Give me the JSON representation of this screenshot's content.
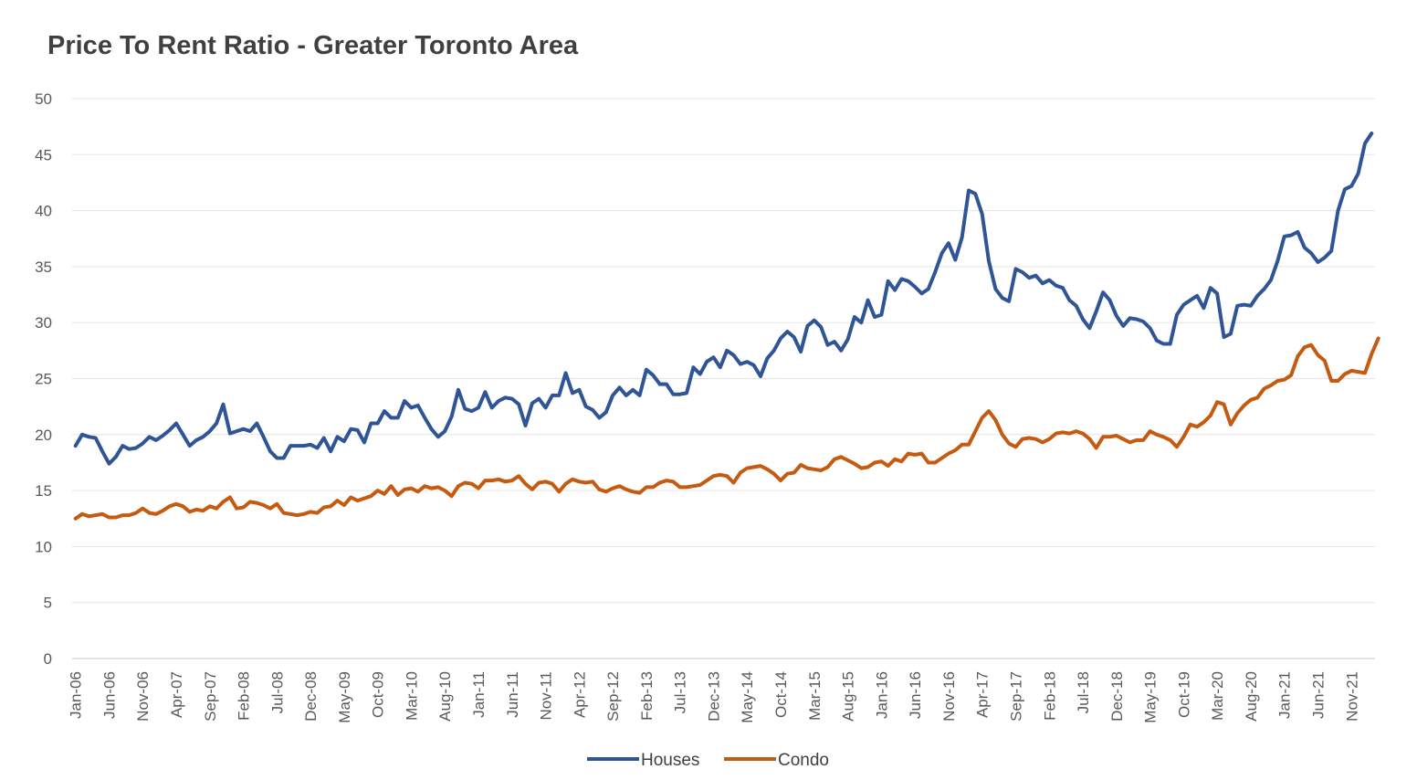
{
  "colors": {
    "houses": "#2f5597",
    "condo": "#c55a11"
  },
  "chart_data": {
    "type": "line",
    "title": "Price To Rent Ratio - Greater Toronto Area",
    "xlabel": "",
    "ylabel": "",
    "ylim": [
      0,
      50
    ],
    "yticks": [
      0,
      5,
      10,
      15,
      20,
      25,
      30,
      35,
      40,
      45,
      50
    ],
    "grid": true,
    "legend": "bottom",
    "x_start": "Jan-06",
    "x_end": "Mar-22",
    "x_tick_labels": [
      "Jan-06",
      "Jun-06",
      "Nov-06",
      "Apr-07",
      "Sep-07",
      "Feb-08",
      "Jul-08",
      "Dec-08",
      "May-09",
      "Oct-09",
      "Mar-10",
      "Aug-10",
      "Jan-11",
      "Jun-11",
      "Nov-11",
      "Apr-12",
      "Sep-12",
      "Feb-13",
      "Jul-13",
      "Dec-13",
      "May-14",
      "Oct-14",
      "Mar-15",
      "Aug-15",
      "Jan-16",
      "Jun-16",
      "Nov-16",
      "Apr-17",
      "Sep-17",
      "Feb-18",
      "Jul-18",
      "Dec-18",
      "May-19",
      "Oct-19",
      "Mar-20",
      "Aug-20",
      "Jan-21",
      "Jun-21",
      "Nov-21"
    ],
    "series": [
      {
        "name": "Houses",
        "color": "#2f5597",
        "values": [
          19.0,
          20.0,
          19.8,
          19.7,
          18.5,
          17.4,
          18.0,
          19.0,
          18.7,
          18.8,
          19.2,
          19.8,
          19.5,
          19.9,
          20.4,
          21.0,
          20.0,
          19.0,
          19.5,
          19.8,
          20.3,
          21.0,
          22.7,
          20.1,
          20.3,
          20.5,
          20.3,
          21.0,
          19.8,
          18.5,
          17.9,
          17.9,
          19.0,
          19.0,
          19.0,
          19.1,
          18.8,
          19.7,
          18.5,
          19.8,
          19.4,
          20.5,
          20.4,
          19.3,
          21.0,
          21.0,
          22.1,
          21.5,
          21.5,
          23.0,
          22.4,
          22.6,
          21.5,
          20.5,
          19.8,
          20.3,
          21.6,
          24.0,
          22.3,
          22.1,
          22.4,
          23.8,
          22.4,
          23.0,
          23.3,
          23.2,
          22.7,
          20.8,
          22.8,
          23.2,
          22.4,
          23.5,
          23.5,
          25.5,
          23.7,
          24.0,
          22.5,
          22.2,
          21.5,
          22.0,
          23.5,
          24.2,
          23.5,
          24.0,
          23.5,
          25.8,
          25.3,
          24.5,
          24.5,
          23.6,
          23.6,
          23.7,
          26.0,
          25.4,
          26.5,
          26.9,
          26.0,
          27.5,
          27.1,
          26.3,
          26.5,
          26.2,
          25.2,
          26.8,
          27.5,
          28.6,
          29.2,
          28.7,
          27.4,
          29.7,
          30.2,
          29.6,
          28.0,
          28.3,
          27.5,
          28.5,
          30.5,
          30.0,
          32.0,
          30.5,
          30.7,
          33.7,
          32.9,
          33.9,
          33.7,
          33.2,
          32.6,
          33.0,
          34.5,
          36.2,
          37.1,
          35.6,
          37.6,
          41.8,
          41.5,
          39.7,
          35.5,
          33.0,
          32.2,
          31.9,
          34.8,
          34.5,
          34.0,
          34.2,
          33.5,
          33.8,
          33.3,
          33.1,
          32.0,
          31.5,
          30.3,
          29.5,
          31.0,
          32.7,
          32.0,
          30.6,
          29.7,
          30.4,
          30.3,
          30.1,
          29.5,
          28.4,
          28.1,
          28.1,
          30.7,
          31.6,
          32.0,
          32.4,
          31.3,
          33.1,
          32.6,
          28.7,
          29.0,
          31.5,
          31.6,
          31.5,
          32.4,
          33.0,
          33.8,
          35.5,
          37.7,
          37.8,
          38.1,
          36.7,
          36.2,
          35.4,
          35.8,
          36.4,
          40.0,
          41.9,
          42.2,
          43.3,
          46.0,
          46.9
        ]
      },
      {
        "name": "Condo",
        "color": "#c55a11",
        "values": [
          12.5,
          12.9,
          12.7,
          12.8,
          12.9,
          12.6,
          12.6,
          12.8,
          12.8,
          13.0,
          13.4,
          13.0,
          12.9,
          13.2,
          13.6,
          13.8,
          13.6,
          13.1,
          13.3,
          13.2,
          13.6,
          13.4,
          14.0,
          14.4,
          13.4,
          13.5,
          14.0,
          13.9,
          13.7,
          13.4,
          13.8,
          13.0,
          12.9,
          12.8,
          12.9,
          13.1,
          13.0,
          13.5,
          13.6,
          14.1,
          13.7,
          14.4,
          14.1,
          14.3,
          14.5,
          15.0,
          14.7,
          15.4,
          14.6,
          15.1,
          15.2,
          14.9,
          15.4,
          15.2,
          15.3,
          15.0,
          14.5,
          15.4,
          15.7,
          15.6,
          15.2,
          15.9,
          15.9,
          16.0,
          15.8,
          15.9,
          16.3,
          15.6,
          15.1,
          15.7,
          15.8,
          15.6,
          14.9,
          15.6,
          16.0,
          15.8,
          15.7,
          15.8,
          15.1,
          14.9,
          15.2,
          15.4,
          15.1,
          14.9,
          14.8,
          15.3,
          15.3,
          15.7,
          15.9,
          15.8,
          15.3,
          15.3,
          15.4,
          15.5,
          15.9,
          16.3,
          16.4,
          16.3,
          15.7,
          16.6,
          17.0,
          17.1,
          17.2,
          16.9,
          16.5,
          15.9,
          16.5,
          16.6,
          17.3,
          17.0,
          16.9,
          16.8,
          17.1,
          17.8,
          18.0,
          17.7,
          17.4,
          17.0,
          17.1,
          17.5,
          17.6,
          17.2,
          17.8,
          17.6,
          18.3,
          18.2,
          18.3,
          17.5,
          17.5,
          17.9,
          18.3,
          18.6,
          19.1,
          19.1,
          20.3,
          21.5,
          22.1,
          21.3,
          20.0,
          19.2,
          18.9,
          19.6,
          19.7,
          19.6,
          19.3,
          19.6,
          20.1,
          20.2,
          20.1,
          20.3,
          20.1,
          19.6,
          18.8,
          19.8,
          19.8,
          19.9,
          19.6,
          19.3,
          19.5,
          19.5,
          20.3,
          20.0,
          19.8,
          19.5,
          18.9,
          19.8,
          20.9,
          20.7,
          21.1,
          21.7,
          22.9,
          22.7,
          20.9,
          21.9,
          22.6,
          23.1,
          23.3,
          24.1,
          24.4,
          24.8,
          24.9,
          25.3,
          27.0,
          27.8,
          28.0,
          27.1,
          26.6,
          24.8,
          24.8,
          25.4,
          25.7,
          25.6,
          25.5,
          27.2,
          28.6
        ]
      }
    ]
  }
}
